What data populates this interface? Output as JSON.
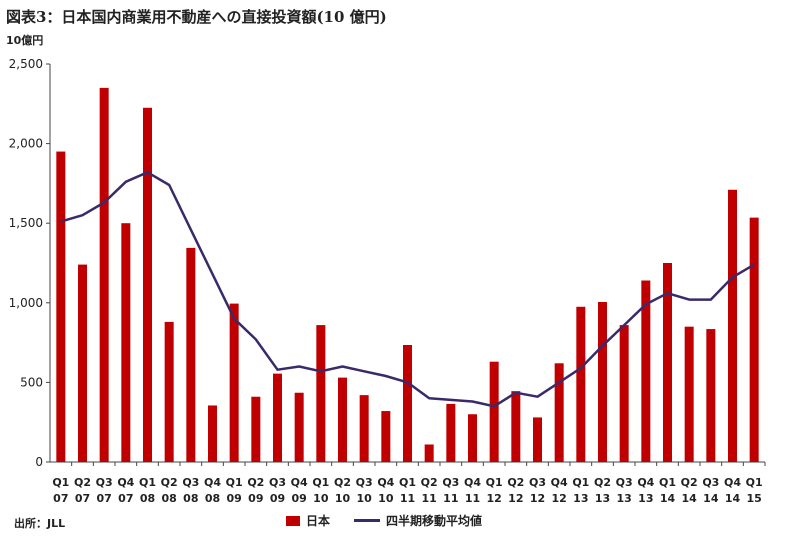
{
  "title": "図表3：日本国内商業用不動産への直接投資額(10 億円)",
  "unit_label": "10億円",
  "source": "出所：JLL",
  "colors": {
    "bar": "#c00000",
    "line": "#3b2a6a",
    "axis": "#444444"
  },
  "chart_data": {
    "type": "bar",
    "categories": [
      [
        "Q1",
        "07"
      ],
      [
        "Q2",
        "07"
      ],
      [
        "Q3",
        "07"
      ],
      [
        "Q4",
        "07"
      ],
      [
        "Q1",
        "08"
      ],
      [
        "Q2",
        "08"
      ],
      [
        "Q3",
        "08"
      ],
      [
        "Q4",
        "08"
      ],
      [
        "Q1",
        "09"
      ],
      [
        "Q2",
        "09"
      ],
      [
        "Q3",
        "09"
      ],
      [
        "Q4",
        "09"
      ],
      [
        "Q1",
        "10"
      ],
      [
        "Q2",
        "10"
      ],
      [
        "Q3",
        "10"
      ],
      [
        "Q4",
        "10"
      ],
      [
        "Q1",
        "11"
      ],
      [
        "Q2",
        "11"
      ],
      [
        "Q3",
        "11"
      ],
      [
        "Q4",
        "11"
      ],
      [
        "Q1",
        "12"
      ],
      [
        "Q2",
        "12"
      ],
      [
        "Q3",
        "12"
      ],
      [
        "Q4",
        "12"
      ],
      [
        "Q1",
        "13"
      ],
      [
        "Q2",
        "13"
      ],
      [
        "Q3",
        "13"
      ],
      [
        "Q4",
        "13"
      ],
      [
        "Q1",
        "14"
      ],
      [
        "Q2",
        "14"
      ],
      [
        "Q3",
        "14"
      ],
      [
        "Q4",
        "14"
      ],
      [
        "Q1",
        "15"
      ]
    ],
    "series": [
      {
        "name": "日本",
        "type": "bar",
        "values": [
          1950,
          1240,
          2350,
          1500,
          2225,
          880,
          1345,
          355,
          995,
          410,
          555,
          435,
          860,
          530,
          420,
          320,
          735,
          110,
          365,
          300,
          630,
          445,
          280,
          620,
          975,
          1005,
          860,
          1140,
          1250,
          850,
          835,
          1710,
          1535
        ]
      },
      {
        "name": "四半期移動平均値",
        "type": "line",
        "values": [
          1510,
          1550,
          1630,
          1760,
          1820,
          1740,
          1460,
          1180,
          900,
          770,
          580,
          600,
          570,
          600,
          570,
          540,
          500,
          400,
          390,
          380,
          350,
          435,
          410,
          500,
          590,
          730,
          860,
          990,
          1060,
          1020,
          1020,
          1160,
          1240
        ]
      }
    ],
    "ylim": [
      0,
      2500
    ],
    "yticks": [
      "0",
      "500",
      "1,000",
      "1,500",
      "2,000",
      "2,500"
    ],
    "ytick_values": [
      0,
      500,
      1000,
      1500,
      2000,
      2500
    ],
    "legend": "bottom-center",
    "grid": false
  }
}
